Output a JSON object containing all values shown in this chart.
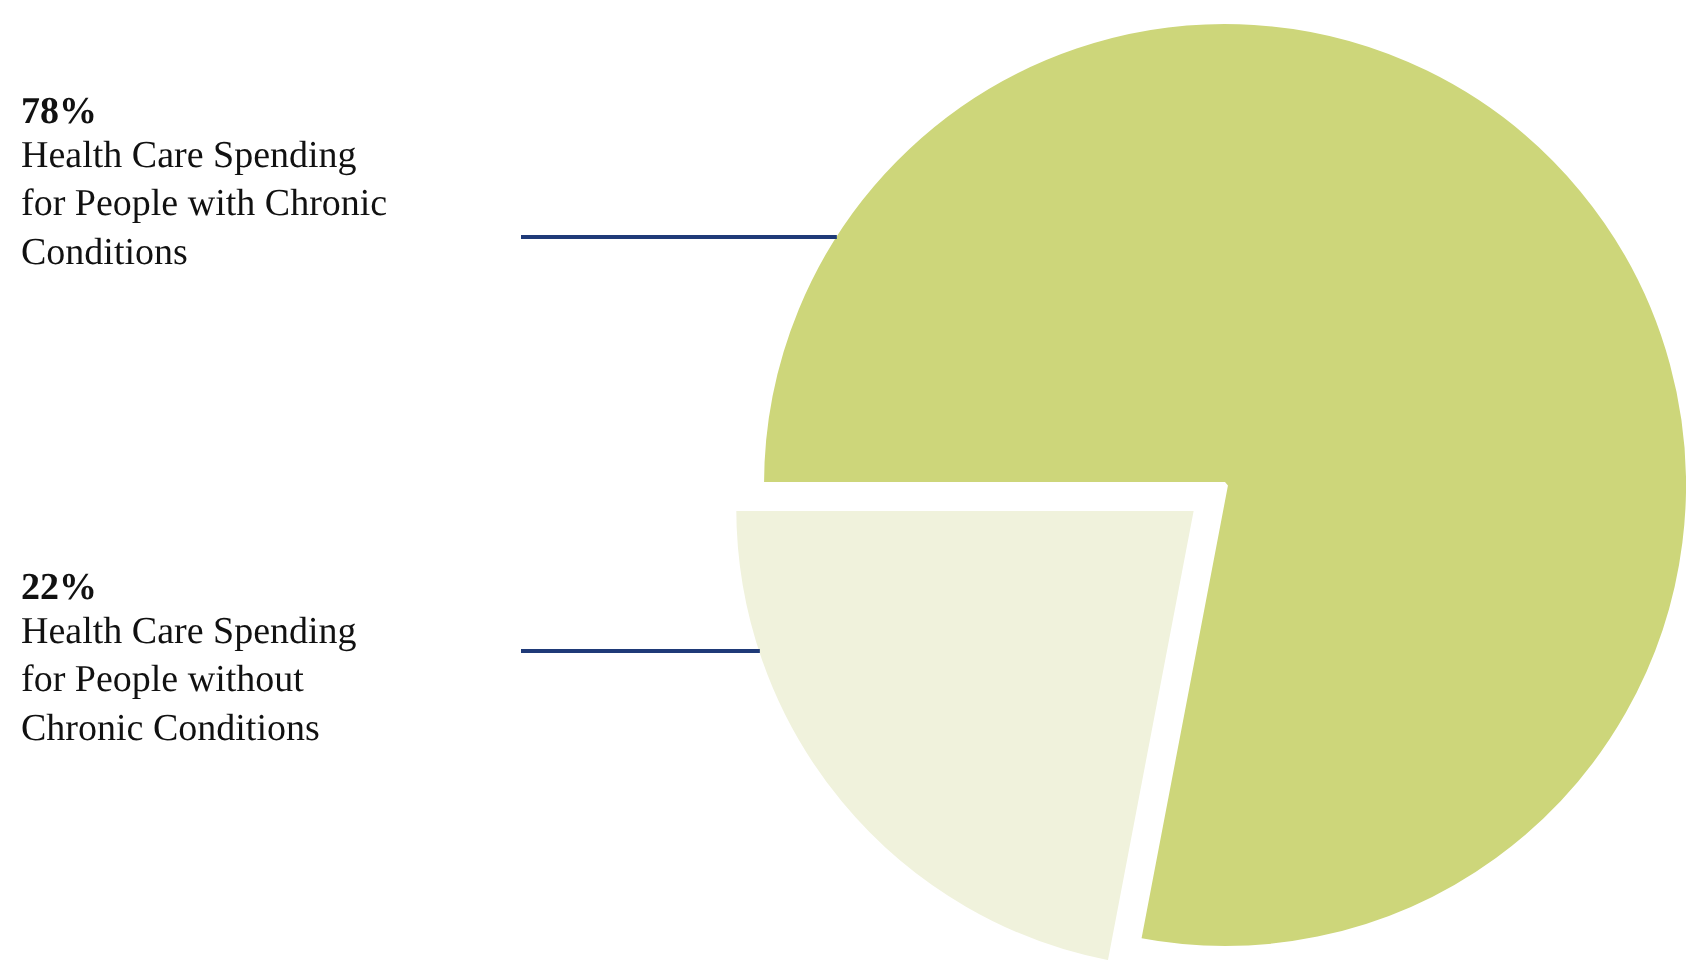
{
  "chart_data": {
    "type": "pie",
    "categories": [
      "Health Care Spending\nfor People with Chronic\nConditions",
      "Health Care Spending\nfor People without\nChronic Conditions"
    ],
    "values": [
      78,
      22
    ],
    "colors": [
      "#cdd67a",
      "#f0f2dc"
    ],
    "value_labels": [
      "78%",
      "22%"
    ]
  }
}
